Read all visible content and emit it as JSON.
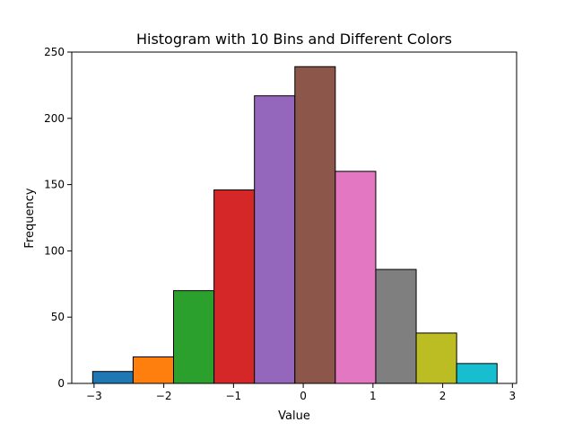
{
  "chart_data": {
    "type": "bar",
    "title": "Histogram with 10 Bins and Different Colors",
    "xlabel": "Value",
    "ylabel": "Frequency",
    "xlim": [
      -3.32,
      3.06
    ],
    "ylim": [
      0,
      250
    ],
    "xticks": [
      -3,
      -2,
      -1,
      0,
      1,
      2,
      3
    ],
    "xtick_labels": [
      "−3",
      "−2",
      "−1",
      "0",
      "1",
      "2",
      "3"
    ],
    "yticks": [
      0,
      50,
      100,
      150,
      200,
      250
    ],
    "ytick_labels": [
      "0",
      "50",
      "100",
      "150",
      "200",
      "250"
    ],
    "grid": false,
    "bins": [
      {
        "x0": -3.02,
        "x1": -2.44,
        "value": 9,
        "color": "#1f77b4"
      },
      {
        "x0": -2.44,
        "x1": -1.86,
        "value": 20,
        "color": "#ff7f0e"
      },
      {
        "x0": -1.86,
        "x1": -1.28,
        "value": 70,
        "color": "#2ca02c"
      },
      {
        "x0": -1.28,
        "x1": -0.7,
        "value": 146,
        "color": "#d62728"
      },
      {
        "x0": -0.7,
        "x1": -0.12,
        "value": 217,
        "color": "#9467bd"
      },
      {
        "x0": -0.12,
        "x1": 0.46,
        "value": 239,
        "color": "#8c564b"
      },
      {
        "x0": 0.46,
        "x1": 1.04,
        "value": 160,
        "color": "#e377c2"
      },
      {
        "x0": 1.04,
        "x1": 1.62,
        "value": 86,
        "color": "#7f7f7f"
      },
      {
        "x0": 1.62,
        "x1": 2.2,
        "value": 38,
        "color": "#bcbd22"
      },
      {
        "x0": 2.2,
        "x1": 2.78,
        "value": 15,
        "color": "#17becf"
      }
    ],
    "edge_color": "#000000"
  }
}
